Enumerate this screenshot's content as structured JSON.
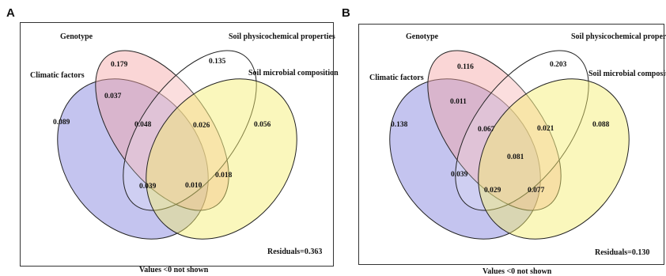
{
  "panels": [
    {
      "letter": "A",
      "sets": [
        "Genotype",
        "Soil physicochemical properties",
        "Climatic factors",
        "Soil microbial composition"
      ],
      "values": {
        "genotype_only": "0.179",
        "soil_phys_only": "0.135",
        "climatic_only": "0.089",
        "microbial_only": "0.056",
        "climatic_genotype": "0.037",
        "center_left": "0.048",
        "center_right": "0.026",
        "all_four": "",
        "right_lower": "0.018",
        "bottom_left": "0.039",
        "bottom_mid": "0.010",
        "left_lower": ""
      },
      "residuals": "Residuals=0.363",
      "footer": "Values <0 not shown"
    },
    {
      "letter": "B",
      "sets": [
        "Genotype",
        "Soil physicochemical properties",
        "Climatic factors",
        "Soil microbial compositio"
      ],
      "values": {
        "genotype_only": "0.116",
        "soil_phys_only": "0.203",
        "climatic_only": "0.138",
        "microbial_only": "0.088",
        "climatic_genotype": "0.011",
        "center_left": "0.067",
        "center_right": "0.021",
        "all_four": "0.081",
        "right_lower": "",
        "bottom_left": "0.029",
        "bottom_mid": "0.077",
        "left_lower": "0.039"
      },
      "residuals": "Residuals=0.130",
      "footer": "Values <0 not shown"
    }
  ],
  "colors": {
    "climatic": "#7d7ddb",
    "genotype": "#f4a3a3",
    "soil_phys": "#ffffff",
    "microbial": "#f5ee6a",
    "stroke": "#222222"
  }
}
